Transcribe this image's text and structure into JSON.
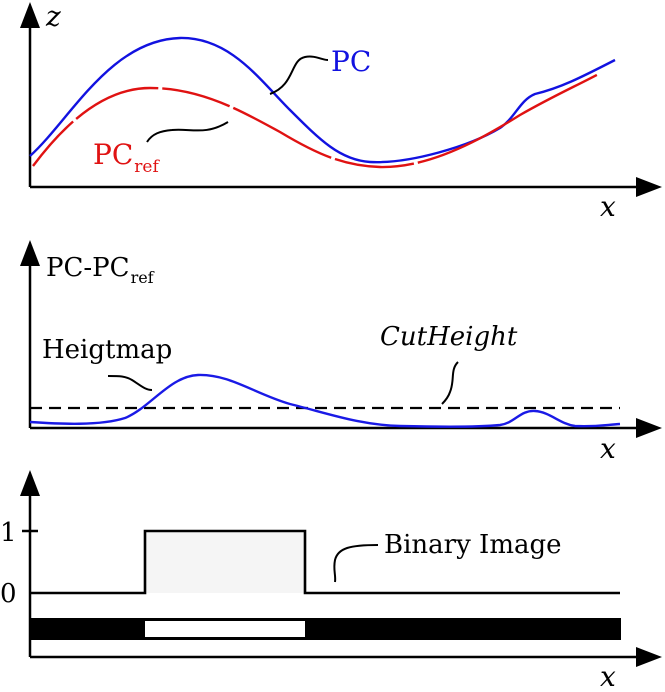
{
  "colors": {
    "pc": "#1212e0",
    "pc_ref": "#e01212",
    "heightmap": "#1a1ae6",
    "ink": "#000000",
    "binary_high_fill": "#f5f5f5"
  },
  "panel_top": {
    "y_axis_label": "z",
    "x_axis_label": "x",
    "pc_label": "PC",
    "pc_ref_label_main": "PC",
    "pc_ref_label_sub": "ref"
  },
  "panel_middle": {
    "y_axis_label_main": "PC-PC",
    "y_axis_label_sub": "ref",
    "x_axis_label": "x",
    "heightmap_label": "Heigtmap",
    "cutheight_label": "CutHeight"
  },
  "panel_bottom": {
    "x_axis_label": "x",
    "tick_1": "1",
    "tick_0": "0",
    "binary_label": "Binary Image"
  }
}
